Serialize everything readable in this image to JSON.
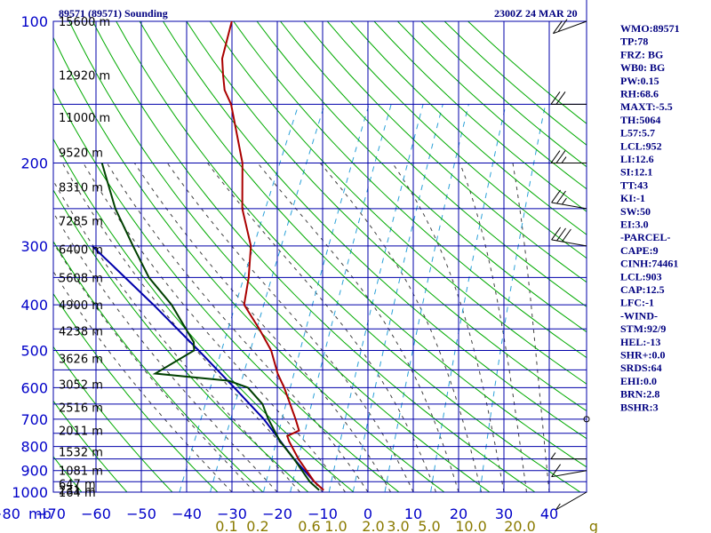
{
  "header": {
    "station": "89571 (89571) Sounding",
    "time": "2300Z 24 MAR 20"
  },
  "indices": [
    "WMO:89571",
    "TP:78",
    "FRZ: BG",
    "WB0: BG",
    "PW:0.15",
    "RH:68.6",
    "MAXT:-5.5",
    "TH:5064",
    "L57:5.7",
    "LCL:952",
    "LI:12.6",
    "SI:12.1",
    "TT:43",
    "KI:-1",
    "SW:50",
    "EI:3.0",
    "-PARCEL-",
    "CAPE:9",
    "CINH:74461",
    "LCL:903",
    "CAP:12.5",
    "LFC:-1",
    "-WIND-",
    "STM:92/9",
    "HEL:-13",
    "SHR+:0.0",
    "SRDS:64",
    "EHI:0.0",
    "BRN:2.8",
    "BSHR:3"
  ],
  "colors": {
    "grid": "#0000aa",
    "dry_adiabat": "#00aa00",
    "moist_adiabat": "#404040",
    "mixing_ratio": "#2aa0d8",
    "temperature": "#aa0000",
    "dewpoint": "#004000",
    "parcel": "#0000aa",
    "axis_text": "#0000c8",
    "mixing_ratio_text": "#8a7a00"
  },
  "chart_data": {
    "type": "skew-t log-p sounding",
    "x_unit_label": "mb",
    "y_unit": "mb",
    "pressure_levels": [
      100,
      200,
      300,
      400,
      500,
      600,
      700,
      800,
      900,
      1000
    ],
    "temperature_ticks": [
      -80,
      -70,
      -60,
      -50,
      -40,
      -30,
      -20,
      -10,
      0,
      10,
      20,
      30,
      40
    ],
    "temperature_tick_labels": [
      "−80",
      "−70",
      "−60",
      "−50",
      "−40",
      "−30",
      "−20",
      "−10",
      "0",
      "10",
      "20",
      "30",
      "40"
    ],
    "mixing_ratio_labels": [
      "0.1",
      "0.2",
      "0.6",
      "1.0",
      "2.0",
      "3.0",
      "5.0",
      "10.0",
      "20.0",
      "g"
    ],
    "height_labels": [
      "15600 m",
      "12920 m",
      "11000 m",
      "9520 m",
      "8310 m",
      "7285 m",
      "6400 m",
      "5608 m",
      "4900 m",
      "4238 m",
      "3626 m",
      "3052 m",
      "2516 m",
      "2011 m",
      "1532 m",
      "1081 m",
      "647 m",
      "231 m",
      "164 m"
    ],
    "temperature_profile": [
      {
        "p": 990,
        "t": -10
      },
      {
        "p": 950,
        "t": -13
      },
      {
        "p": 850,
        "t": -19
      },
      {
        "p": 780,
        "t": -23
      },
      {
        "p": 760,
        "t": -24
      },
      {
        "p": 740,
        "t": -22
      },
      {
        "p": 700,
        "t": -24
      },
      {
        "p": 600,
        "t": -30
      },
      {
        "p": 560,
        "t": -33
      },
      {
        "p": 500,
        "t": -37
      },
      {
        "p": 450,
        "t": -42
      },
      {
        "p": 400,
        "t": -48
      },
      {
        "p": 350,
        "t": -50
      },
      {
        "p": 300,
        "t": -53
      },
      {
        "p": 250,
        "t": -59
      },
      {
        "p": 200,
        "t": -64
      },
      {
        "p": 150,
        "t": -73
      },
      {
        "p": 140,
        "t": -76
      },
      {
        "p": 130,
        "t": -78
      },
      {
        "p": 120,
        "t": -80
      },
      {
        "p": 100,
        "t": -82
      }
    ],
    "dewpoint_profile": [
      {
        "p": 990,
        "t": -11
      },
      {
        "p": 950,
        "t": -14
      },
      {
        "p": 850,
        "t": -20
      },
      {
        "p": 780,
        "t": -25
      },
      {
        "p": 700,
        "t": -30
      },
      {
        "p": 650,
        "t": -33
      },
      {
        "p": 600,
        "t": -38
      },
      {
        "p": 580,
        "t": -43
      },
      {
        "p": 560,
        "t": -60
      },
      {
        "p": 500,
        "t": -54
      },
      {
        "p": 480,
        "t": -55
      },
      {
        "p": 400,
        "t": -64
      },
      {
        "p": 350,
        "t": -72
      },
      {
        "p": 300,
        "t": -79
      },
      {
        "p": 250,
        "t": -87
      },
      {
        "p": 200,
        "t": -95
      }
    ],
    "parcel_profile": [
      {
        "p": 950,
        "t": -13
      },
      {
        "p": 850,
        "t": -20
      },
      {
        "p": 700,
        "t": -31
      },
      {
        "p": 600,
        "t": -41
      },
      {
        "p": 500,
        "t": -53
      },
      {
        "p": 400,
        "t": -68
      },
      {
        "p": 300,
        "t": -88
      }
    ],
    "mixing_ratios_gkg": [
      0.1,
      0.2,
      0.6,
      1.0,
      2.0,
      3.0,
      5.0,
      10.0,
      20.0
    ],
    "wind_barbs": [
      {
        "p": 100,
        "dir": 250,
        "kt": 20
      },
      {
        "p": 150,
        "dir": 270,
        "kt": 20
      },
      {
        "p": 200,
        "dir": 270,
        "kt": 25
      },
      {
        "p": 250,
        "dir": 280,
        "kt": 25
      },
      {
        "p": 300,
        "dir": 280,
        "kt": 30
      },
      {
        "p": 850,
        "dir": 270,
        "kt": 5
      },
      {
        "p": 900,
        "dir": 260,
        "kt": 10
      },
      {
        "p": 1000,
        "dir": 240,
        "kt": 5
      }
    ]
  }
}
